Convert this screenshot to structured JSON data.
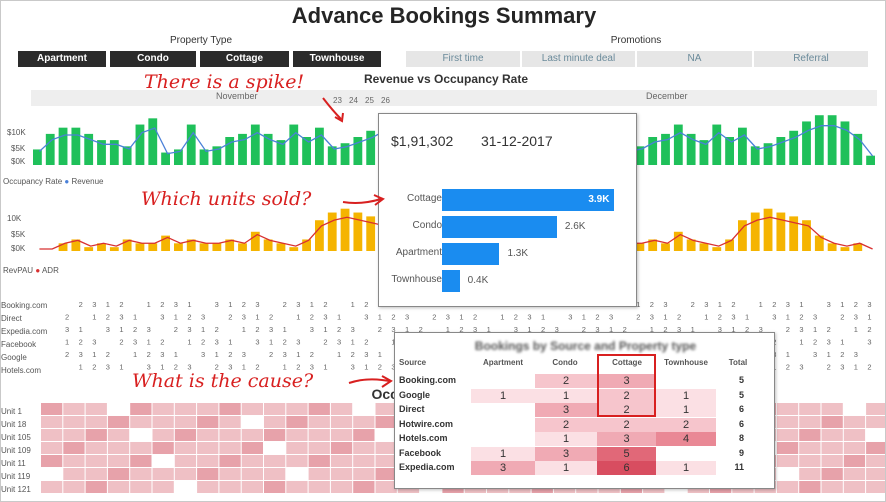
{
  "title": "Advance Bookings Summary",
  "property_type": {
    "label": "Property Type",
    "options": [
      "Apartment",
      "Condo",
      "Cottage",
      "Townhouse"
    ]
  },
  "promotions": {
    "label": "Promotions",
    "options": [
      "First time",
      "Last minute deal",
      "NA",
      "Referral"
    ]
  },
  "revenue_chart": {
    "title": "Revenue vs Occupancy Rate",
    "months": [
      "November",
      "December"
    ],
    "day_ticks": [
      "23",
      "24",
      "25",
      "26"
    ],
    "legend": [
      "Occupancy Rate",
      "Revenue"
    ],
    "y_ticks": [
      "$10K",
      "$5K",
      "$0K"
    ]
  },
  "revpau_chart": {
    "legend": [
      "RevPAU",
      "ADR"
    ],
    "y_ticks": [
      "10K",
      "$5K",
      "$0K"
    ]
  },
  "source_labels": [
    "Booking.com",
    "Direct",
    "Expedia.com",
    "Facebook",
    "Google",
    "Hotels.com"
  ],
  "occupancy": {
    "title_fragment": "Occu",
    "unit_labels": [
      "Unit 1",
      "Unit 18",
      "Unit 105",
      "Unit 109",
      "Unit 11",
      "Unit 119",
      "Unit 121"
    ]
  },
  "annotations": {
    "spike": "There is a spike!",
    "units": "Which units sold?",
    "cause": "What is the cause?"
  },
  "tooltip": {
    "revenue": "$1,91,302",
    "date": "31-12-2017",
    "bars": [
      {
        "label": "Cottage",
        "value": 3.9,
        "display": "3.9K"
      },
      {
        "label": "Condo",
        "value": 2.6,
        "display": "2.6K"
      },
      {
        "label": "Apartment",
        "value": 1.3,
        "display": "1.3K"
      },
      {
        "label": "Townhouse",
        "value": 0.4,
        "display": "0.4K"
      }
    ]
  },
  "matrix": {
    "title": "Bookings by Source and Property type",
    "headers": [
      "Source",
      "Apartment",
      "Condo",
      "Cottage",
      "Townhouse",
      "Total"
    ],
    "rows": [
      {
        "source": "Booking.com",
        "apartment": "",
        "condo": "2",
        "cottage": "3",
        "townhouse": "",
        "total": "5"
      },
      {
        "source": "Google",
        "apartment": "1",
        "condo": "1",
        "cottage": "2",
        "townhouse": "1",
        "total": "5"
      },
      {
        "source": "Direct",
        "apartment": "",
        "condo": "3",
        "cottage": "2",
        "townhouse": "1",
        "total": "6"
      },
      {
        "source": "Hotwire.com",
        "apartment": "",
        "condo": "2",
        "cottage": "2",
        "townhouse": "2",
        "total": "6"
      },
      {
        "source": "Hotels.com",
        "apartment": "",
        "condo": "1",
        "cottage": "3",
        "townhouse": "4",
        "total": "8"
      },
      {
        "source": "Facebook",
        "apartment": "1",
        "condo": "3",
        "cottage": "5",
        "townhouse": "",
        "total": "9"
      },
      {
        "source": "Expedia.com",
        "apartment": "3",
        "condo": "1",
        "cottage": "6",
        "townhouse": "1",
        "total": "11"
      }
    ]
  },
  "chart_data": [
    {
      "type": "bar",
      "title": "Revenue vs Occupancy Rate",
      "series": [
        {
          "name": "Revenue",
          "values": [
            5,
            10,
            12,
            12,
            10,
            8,
            8,
            6,
            13,
            15,
            4,
            5,
            13,
            5,
            6,
            9,
            10,
            13,
            10,
            8,
            13,
            9,
            12,
            6,
            7,
            9,
            11,
            14,
            16,
            16,
            14,
            10,
            3
          ]
        }
      ],
      "ylim": [
        0,
        18
      ],
      "color": "#1fc05a",
      "line_color": "#4a80d8"
    },
    {
      "type": "bar",
      "series": [
        {
          "name": "RevPAU",
          "values": [
            0,
            0,
            2,
            3,
            1,
            2,
            1,
            3,
            2,
            2,
            4,
            2,
            3,
            2,
            2,
            3,
            2,
            5,
            3,
            2,
            1,
            3,
            8,
            10,
            11,
            10,
            9,
            8,
            4,
            2,
            1,
            2,
            0
          ]
        }
      ],
      "ylim": [
        0,
        13
      ],
      "color": "#f5b400",
      "line_color": "#d83030"
    }
  ]
}
